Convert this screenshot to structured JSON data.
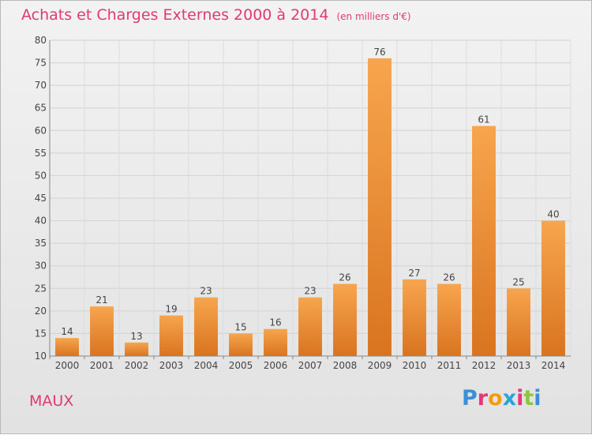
{
  "header": {
    "title": "Achats et Charges Externes 2000 à 2014",
    "unit": "(en milliers d'€)"
  },
  "footer": {
    "commune": "MAUX",
    "logo_text": "Proxiti",
    "logo_colors": [
      "#3b8fd6",
      "#e0397a",
      "#f39c12",
      "#2aa4d8",
      "#e0397a",
      "#8dc63f",
      "#3b8fd6"
    ]
  },
  "chart_data": {
    "type": "bar",
    "categories": [
      "2000",
      "2001",
      "2002",
      "2003",
      "2004",
      "2005",
      "2006",
      "2007",
      "2008",
      "2009",
      "2010",
      "2011",
      "2012",
      "2013",
      "2014"
    ],
    "values": [
      14,
      21,
      13,
      19,
      23,
      15,
      16,
      23,
      26,
      76,
      27,
      26,
      61,
      25,
      40
    ],
    "ylim": [
      10,
      80
    ],
    "yticks": [
      10,
      15,
      20,
      25,
      30,
      35,
      40,
      45,
      50,
      55,
      60,
      65,
      70,
      75,
      80
    ],
    "grid": true,
    "bar_color_top": "#f7a54e",
    "bar_color_bottom": "#d97420",
    "title_color": "#e03a6e"
  }
}
